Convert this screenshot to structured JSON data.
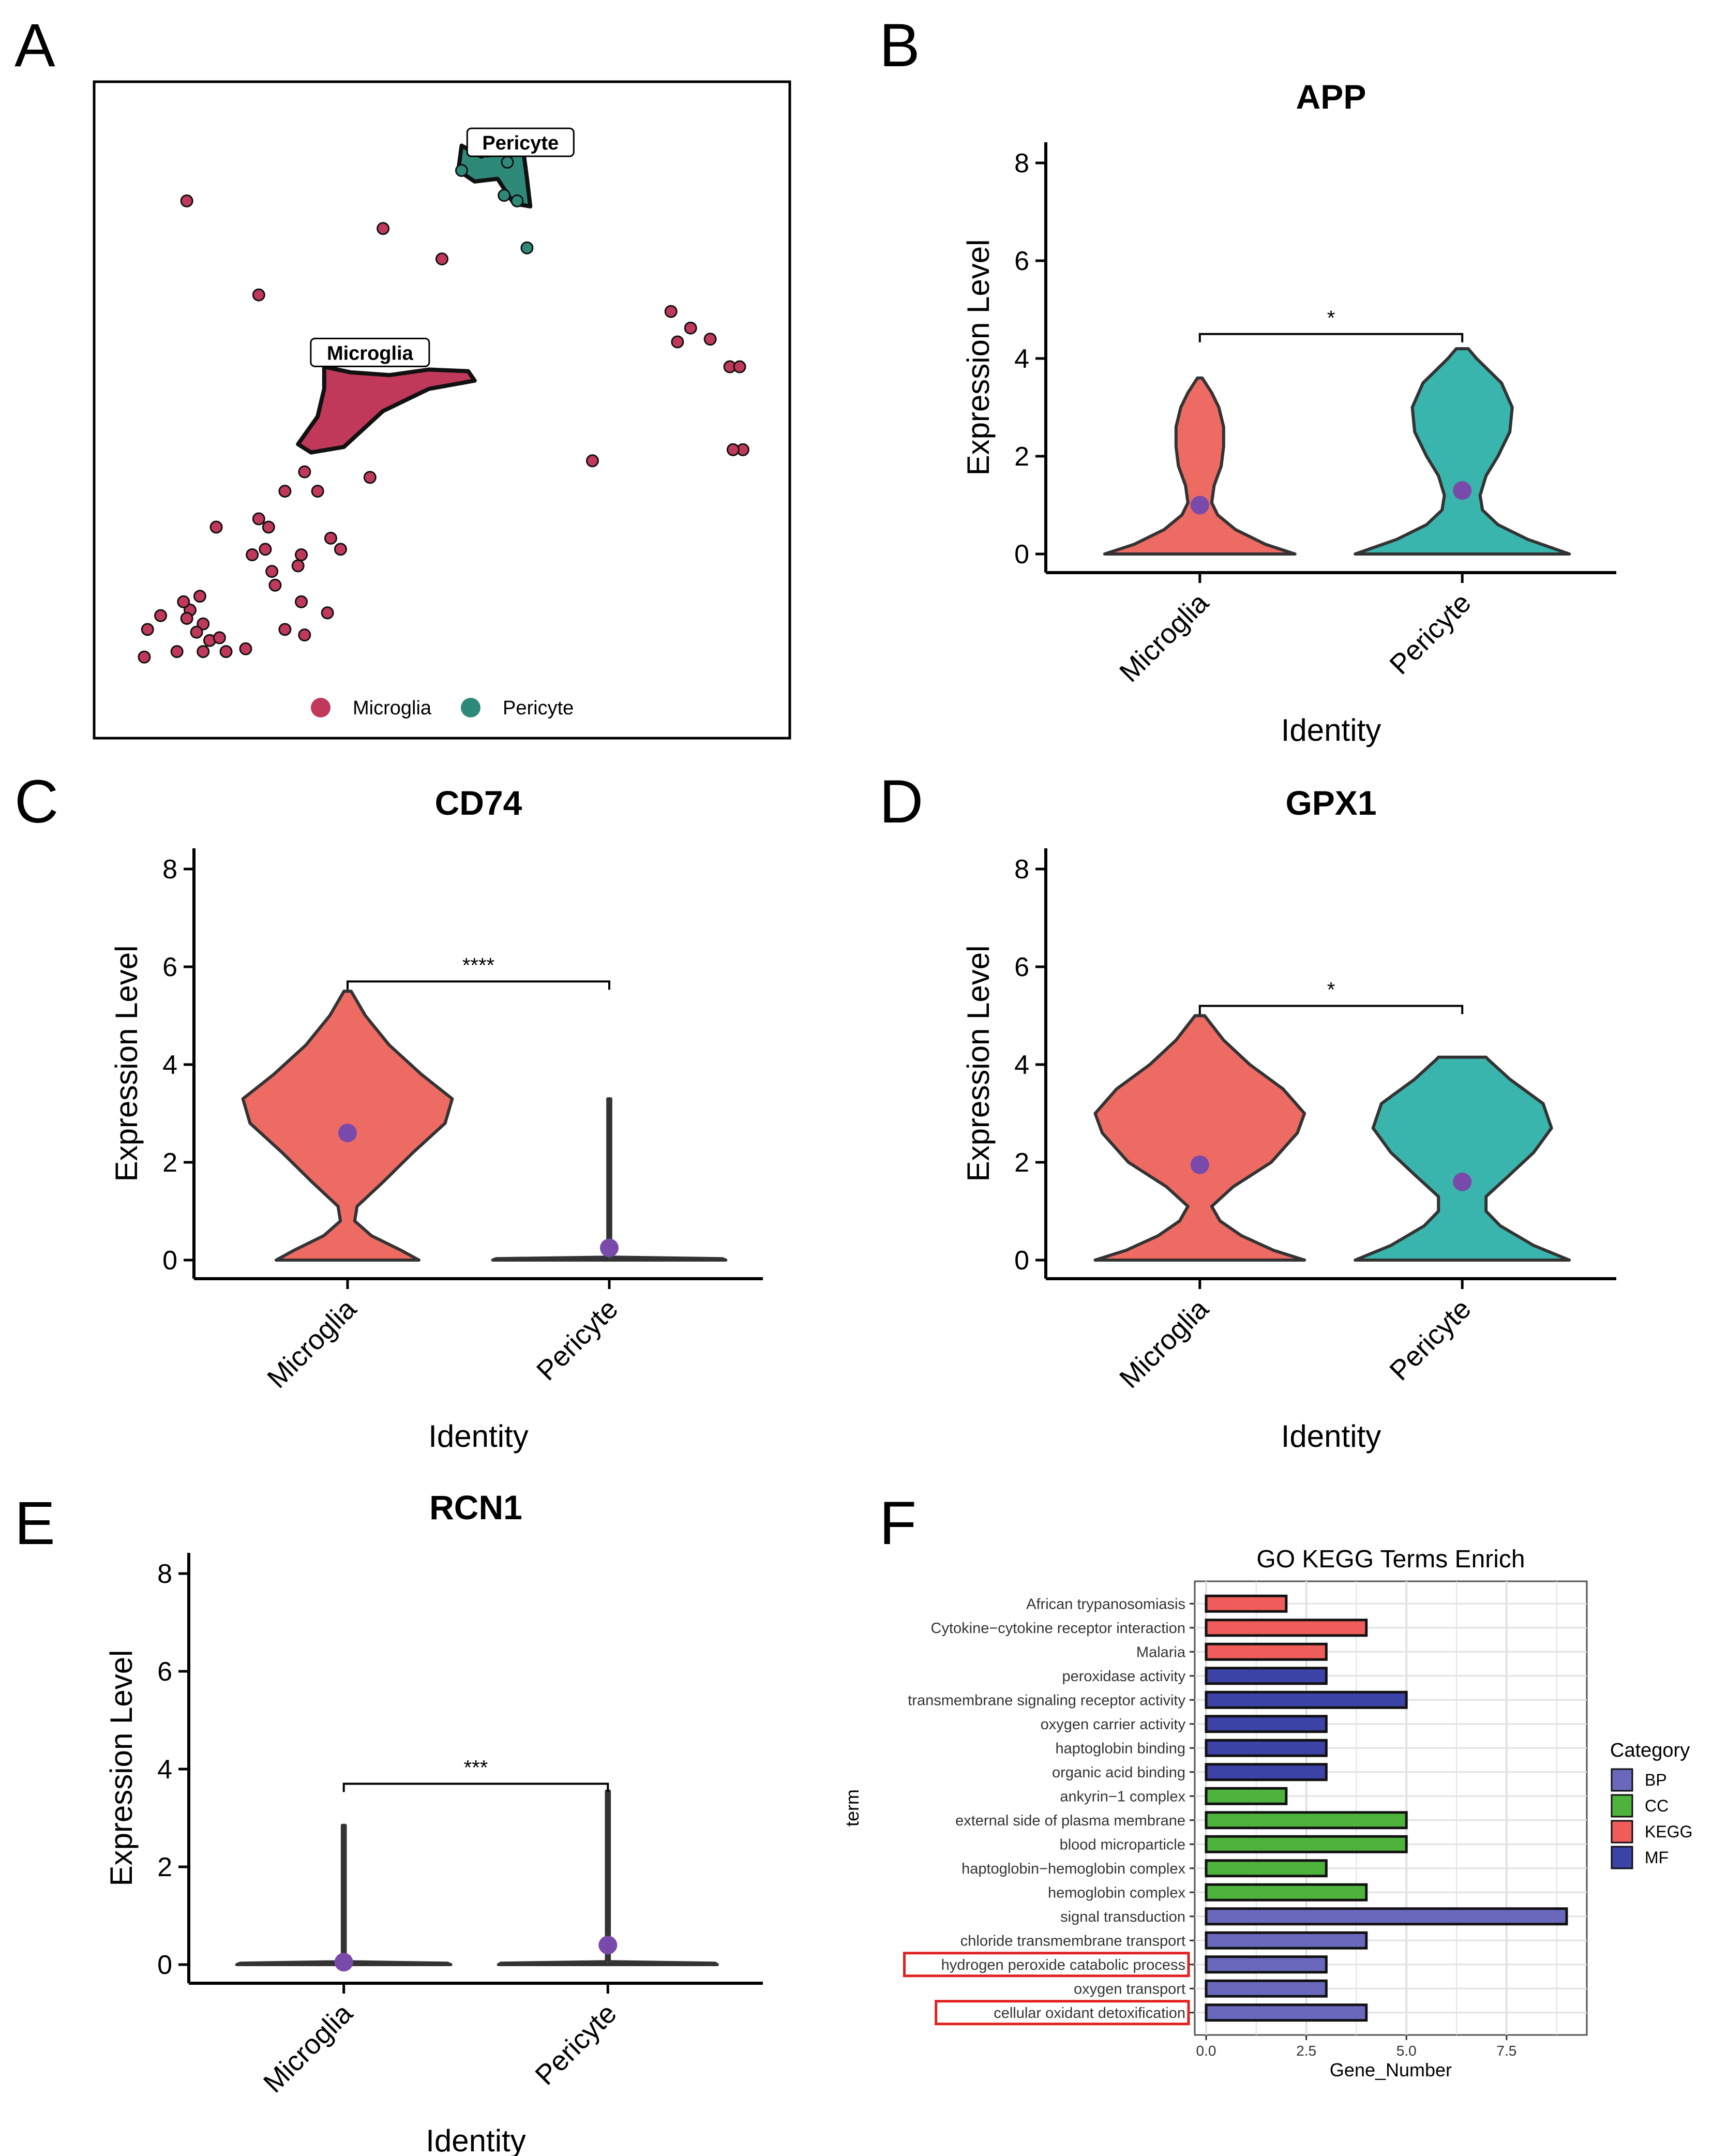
{
  "figure": {
    "panel_letters": [
      "A",
      "B",
      "C",
      "D",
      "E",
      "F"
    ]
  },
  "colors": {
    "microglia_umap": "#c0395a",
    "pericyte_umap": "#2e8a78",
    "microglia_violin": "#ee6b64",
    "pericyte_violin": "#3ab5ad",
    "mean_dot": "#7a4aaa",
    "BP": "#6a68bd",
    "CC": "#4db33d",
    "KEGG": "#ee5d5a",
    "MF": "#3b43a6",
    "highlight": "#e02020"
  },
  "chart_data": [
    {
      "panel": "A",
      "type": "scatter",
      "title": "",
      "cluster_labels": [
        "Pericyte",
        "Microglia"
      ],
      "legend": [
        {
          "name": "Microglia",
          "color_key": "microglia_umap"
        },
        {
          "name": "Pericyte",
          "color_key": "pericyte_umap"
        }
      ],
      "x": [
        0,
        10
      ],
      "y": [
        0,
        10
      ],
      "clusters": {
        "Pericyte": {
          "blob": [
            [
              5.3,
              9.5
            ],
            [
              5.6,
              9.3
            ],
            [
              6.0,
              9.5
            ],
            [
              6.25,
              9.35
            ],
            [
              6.3,
              8.9
            ],
            [
              6.35,
              8.4
            ],
            [
              6.1,
              8.45
            ],
            [
              5.85,
              8.9
            ],
            [
              5.5,
              8.85
            ],
            [
              5.25,
              9.05
            ]
          ],
          "points": [
            [
              6.3,
              7.65
            ],
            [
              5.3,
              9.05
            ],
            [
              5.7,
              9.4
            ],
            [
              6.0,
              9.2
            ],
            [
              5.95,
              8.6
            ],
            [
              6.15,
              8.5
            ]
          ]
        },
        "Microglia": {
          "blob": [
            [
              3.2,
              5.5
            ],
            [
              3.6,
              5.4
            ],
            [
              4.2,
              5.35
            ],
            [
              4.8,
              5.45
            ],
            [
              5.4,
              5.42
            ],
            [
              5.5,
              5.25
            ],
            [
              4.8,
              5.1
            ],
            [
              4.1,
              4.7
            ],
            [
              3.5,
              4.05
            ],
            [
              3.0,
              3.95
            ],
            [
              2.8,
              4.1
            ],
            [
              3.1,
              4.6
            ],
            [
              3.2,
              5.1
            ]
          ],
          "points": [
            [
              1.1,
              8.5
            ],
            [
              4.1,
              8.0
            ],
            [
              5.0,
              7.45
            ],
            [
              2.2,
              6.8
            ],
            [
              8.5,
              6.5
            ],
            [
              8.8,
              6.2
            ],
            [
              9.1,
              6.0
            ],
            [
              8.6,
              5.95
            ],
            [
              9.4,
              5.5
            ],
            [
              9.55,
              5.5
            ],
            [
              9.6,
              4.0
            ],
            [
              9.45,
              4.0
            ],
            [
              7.3,
              3.8
            ],
            [
              2.9,
              3.6
            ],
            [
              3.9,
              3.5
            ],
            [
              3.1,
              3.25
            ],
            [
              2.6,
              3.25
            ],
            [
              2.2,
              2.75
            ],
            [
              2.35,
              2.6
            ],
            [
              1.55,
              2.6
            ],
            [
              2.1,
              2.1
            ],
            [
              2.3,
              2.2
            ],
            [
              3.3,
              2.4
            ],
            [
              3.45,
              2.2
            ],
            [
              2.85,
              2.1
            ],
            [
              2.8,
              1.9
            ],
            [
              2.4,
              1.8
            ],
            [
              2.45,
              1.55
            ],
            [
              1.3,
              1.35
            ],
            [
              1.15,
              1.1
            ],
            [
              1.05,
              1.25
            ],
            [
              1.1,
              0.95
            ],
            [
              0.7,
              1.0
            ],
            [
              0.5,
              0.75
            ],
            [
              1.35,
              0.85
            ],
            [
              1.25,
              0.7
            ],
            [
              1.45,
              0.55
            ],
            [
              1.6,
              0.6
            ],
            [
              0.45,
              0.25
            ],
            [
              0.95,
              0.35
            ],
            [
              1.35,
              0.35
            ],
            [
              1.7,
              0.35
            ],
            [
              2.0,
              0.4
            ],
            [
              2.6,
              0.75
            ],
            [
              2.9,
              0.65
            ],
            [
              2.85,
              1.25
            ],
            [
              3.25,
              1.05
            ]
          ]
        }
      }
    },
    {
      "panel": "B",
      "type": "violin",
      "title": "APP",
      "xlabel": "Identity",
      "ylabel": "Expression Level",
      "categories": [
        "Microglia",
        "Pericyte"
      ],
      "ylim": [
        0,
        8
      ],
      "yticks": [
        0,
        2,
        4,
        6,
        8
      ],
      "significance": "*",
      "bracket_y": 4.5,
      "groups": [
        {
          "name": "Microglia",
          "color_key": "microglia_violin",
          "mean": 1.0,
          "density": [
            [
              0,
              0.8
            ],
            [
              0.2,
              0.55
            ],
            [
              0.5,
              0.3
            ],
            [
              0.8,
              0.15
            ],
            [
              1.05,
              0.1
            ],
            [
              1.4,
              0.12
            ],
            [
              1.8,
              0.18
            ],
            [
              2.2,
              0.2
            ],
            [
              2.6,
              0.2
            ],
            [
              3.0,
              0.16
            ],
            [
              3.3,
              0.1
            ],
            [
              3.6,
              0.02
            ]
          ]
        },
        {
          "name": "Pericyte",
          "color_key": "pericyte_violin",
          "mean": 1.3,
          "density": [
            [
              0,
              0.9
            ],
            [
              0.3,
              0.55
            ],
            [
              0.6,
              0.3
            ],
            [
              0.9,
              0.17
            ],
            [
              1.2,
              0.15
            ],
            [
              1.6,
              0.2
            ],
            [
              2.0,
              0.3
            ],
            [
              2.5,
              0.4
            ],
            [
              3.0,
              0.42
            ],
            [
              3.5,
              0.33
            ],
            [
              4.0,
              0.12
            ],
            [
              4.2,
              0.05
            ]
          ]
        }
      ]
    },
    {
      "panel": "C",
      "type": "violin",
      "title": "CD74",
      "xlabel": "Identity",
      "ylabel": "Expression Level",
      "categories": [
        "Microglia",
        "Pericyte"
      ],
      "ylim": [
        0,
        8
      ],
      "yticks": [
        0,
        2,
        4,
        6,
        8
      ],
      "significance": "****",
      "bracket_y": 5.7,
      "groups": [
        {
          "name": "Microglia",
          "color_key": "microglia_violin",
          "mean": 2.6,
          "density": [
            [
              0,
              0.6
            ],
            [
              0.2,
              0.45
            ],
            [
              0.5,
              0.2
            ],
            [
              0.8,
              0.06
            ],
            [
              1.1,
              0.08
            ],
            [
              1.6,
              0.3
            ],
            [
              2.2,
              0.55
            ],
            [
              2.8,
              0.82
            ],
            [
              3.3,
              0.88
            ],
            [
              3.8,
              0.62
            ],
            [
              4.4,
              0.35
            ],
            [
              5.0,
              0.15
            ],
            [
              5.5,
              0.03
            ]
          ]
        },
        {
          "name": "Pericyte",
          "color_key": "pericyte_violin",
          "mean": 0.25,
          "density": [
            [
              0,
              0.98
            ],
            [
              0.03,
              0.95
            ],
            [
              0.06,
              0.012
            ],
            [
              3.3,
              0.012
            ]
          ]
        }
      ]
    },
    {
      "panel": "D",
      "type": "violin",
      "title": "GPX1",
      "xlabel": "Identity",
      "ylabel": "Expression Level",
      "categories": [
        "Microglia",
        "Pericyte"
      ],
      "ylim": [
        0,
        8
      ],
      "yticks": [
        0,
        2,
        4,
        6,
        8
      ],
      "significance": "*",
      "bracket_y": 5.2,
      "groups": [
        {
          "name": "Microglia",
          "color_key": "microglia_violin",
          "mean": 1.95,
          "density": [
            [
              0,
              0.88
            ],
            [
              0.2,
              0.62
            ],
            [
              0.5,
              0.35
            ],
            [
              0.8,
              0.17
            ],
            [
              1.1,
              0.1
            ],
            [
              1.5,
              0.28
            ],
            [
              2.0,
              0.6
            ],
            [
              2.6,
              0.82
            ],
            [
              3.0,
              0.88
            ],
            [
              3.5,
              0.7
            ],
            [
              4.0,
              0.42
            ],
            [
              4.5,
              0.2
            ],
            [
              5.0,
              0.04
            ]
          ]
        },
        {
          "name": "Pericyte",
          "color_key": "pericyte_violin",
          "mean": 1.6,
          "density": [
            [
              0,
              0.9
            ],
            [
              0.3,
              0.6
            ],
            [
              0.7,
              0.32
            ],
            [
              1.0,
              0.2
            ],
            [
              1.3,
              0.2
            ],
            [
              1.7,
              0.38
            ],
            [
              2.2,
              0.6
            ],
            [
              2.7,
              0.75
            ],
            [
              3.2,
              0.68
            ],
            [
              3.7,
              0.4
            ],
            [
              4.1,
              0.22
            ],
            [
              4.15,
              0.2
            ]
          ]
        }
      ]
    },
    {
      "panel": "E",
      "type": "violin",
      "title": "RCN1",
      "xlabel": "Identity",
      "ylabel": "Expression Level",
      "categories": [
        "Microglia",
        "Pericyte"
      ],
      "ylim": [
        0,
        8
      ],
      "yticks": [
        0,
        2,
        4,
        6,
        8
      ],
      "significance": "***",
      "bracket_y": 3.7,
      "groups": [
        {
          "name": "Microglia",
          "color_key": "microglia_violin",
          "mean": 0.05,
          "density": [
            [
              0,
              0.9
            ],
            [
              0.03,
              0.87
            ],
            [
              0.06,
              0.012
            ],
            [
              2.85,
              0.012
            ]
          ]
        },
        {
          "name": "Pericyte",
          "color_key": "pericyte_violin",
          "mean": 0.4,
          "density": [
            [
              0,
              0.92
            ],
            [
              0.03,
              0.9
            ],
            [
              0.06,
              0.012
            ],
            [
              3.55,
              0.012
            ]
          ]
        }
      ]
    },
    {
      "panel": "F",
      "type": "bar",
      "orientation": "horizontal",
      "title": "GO KEGG Terms Enrich",
      "xlabel": "Gene_Number",
      "ylabel": "term",
      "xlim": [
        0,
        9.4
      ],
      "xticks": [
        0.0,
        2.5,
        5.0,
        7.5
      ],
      "xtick_labels": [
        "0.0",
        "2.5",
        "5.0",
        "7.5"
      ],
      "legend_title": "Category",
      "legend": [
        "BP",
        "CC",
        "KEGG",
        "MF"
      ],
      "categories": [
        "African trypanosomiasis",
        "Cytokine−cytokine receptor interaction",
        "Malaria",
        "peroxidase activity",
        "transmembrane signaling receptor activity",
        "oxygen carrier activity",
        "haptoglobin binding",
        "organic acid binding",
        "ankyrin−1 complex",
        "external side of plasma membrane",
        "blood microparticle",
        "haptoglobin−hemoglobin complex",
        "hemoglobin complex",
        "signal transduction",
        "chloride transmembrane transport",
        "hydrogen peroxide catabolic process",
        "oxygen transport",
        "cellular oxidant detoxification"
      ],
      "values": [
        2,
        4,
        3,
        3,
        5,
        3,
        3,
        3,
        2,
        5,
        5,
        3,
        4,
        9,
        4,
        3,
        3,
        4
      ],
      "category_of_term": [
        "KEGG",
        "KEGG",
        "KEGG",
        "MF",
        "MF",
        "MF",
        "MF",
        "MF",
        "CC",
        "CC",
        "CC",
        "CC",
        "CC",
        "BP",
        "BP",
        "BP",
        "BP",
        "BP"
      ],
      "highlighted_terms": [
        "hydrogen peroxide catabolic process",
        "cellular oxidant detoxification"
      ]
    }
  ]
}
